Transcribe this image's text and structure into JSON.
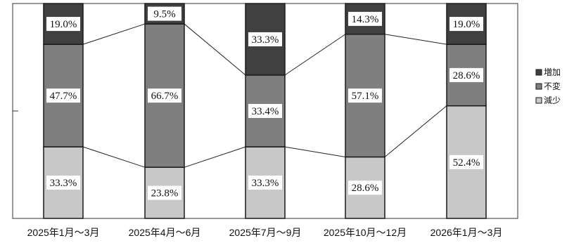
{
  "chart_data": {
    "type": "bar",
    "stacked": true,
    "normalized_percent": true,
    "categories": [
      "2025年1月～3月",
      "2025年4月～6月",
      "2025年7月～9月",
      "2025年10月～12月",
      "2026年1月～3月"
    ],
    "series": [
      {
        "name": "減少",
        "values": [
          33.3,
          23.8,
          33.3,
          28.6,
          52.4
        ],
        "labels": [
          "33.3%",
          "23.8%",
          "33.3%",
          "28.6%",
          "52.4%"
        ],
        "color": "#c8c8c8"
      },
      {
        "name": "不変",
        "values": [
          47.7,
          66.7,
          33.4,
          57.1,
          28.6
        ],
        "labels": [
          "47.7%",
          "66.7%",
          "33.4%",
          "57.1%",
          "28.6%"
        ],
        "color": "#7f7f7f"
      },
      {
        "name": "増加",
        "values": [
          19.0,
          9.5,
          33.3,
          14.3,
          19.0
        ],
        "labels": [
          "19.0%",
          "9.5%",
          "33.3%",
          "14.3%",
          "19.0%"
        ],
        "color": "#404040"
      }
    ],
    "legend_order": [
      "増加",
      "不変",
      "減少"
    ],
    "legend_position": "right",
    "ylim": [
      0,
      100
    ],
    "series_connector_lines": true,
    "title": "",
    "xlabel": "",
    "ylabel": ""
  }
}
